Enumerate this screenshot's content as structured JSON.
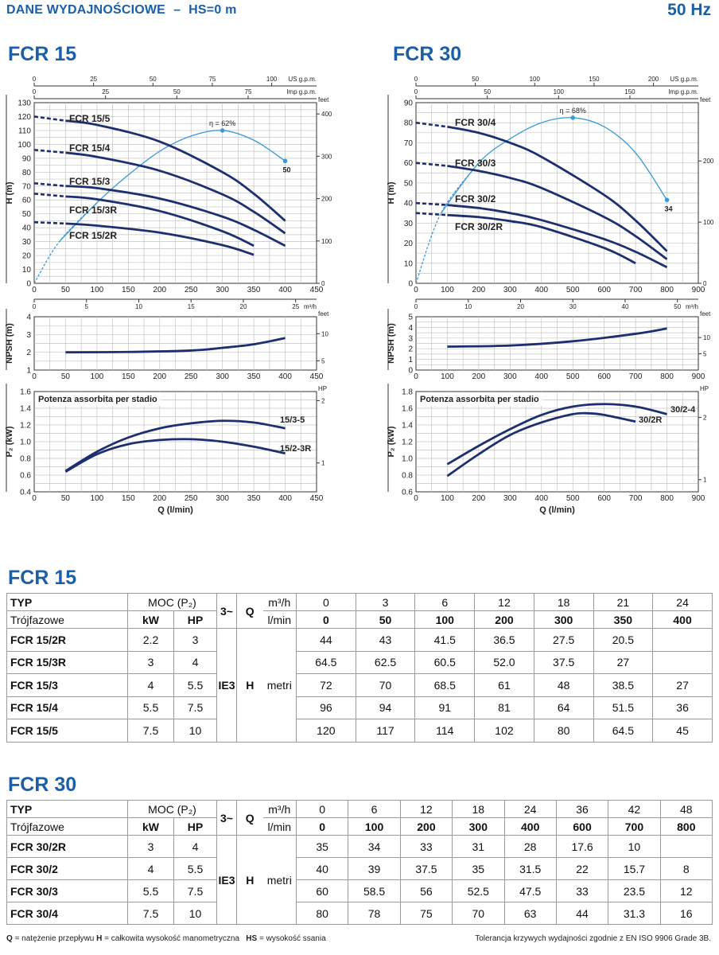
{
  "header": {
    "title": "DANE WYDAJNOŚCIOWE",
    "dash": "–",
    "hs": "HS=0 m",
    "freq": "50 Hz"
  },
  "sections": [
    {
      "title": "FCR 15"
    },
    {
      "title": "FCR 30"
    }
  ],
  "chart_data": [
    {
      "type": "line",
      "id": "h-fcr15",
      "ylabel": "H (m)",
      "xlim": [
        0,
        450
      ],
      "xticks": [
        0,
        50,
        100,
        150,
        200,
        250,
        300,
        350,
        400,
        450
      ],
      "ylim": [
        0,
        130
      ],
      "yticks": [
        0,
        10,
        20,
        30,
        40,
        50,
        60,
        70,
        80,
        90,
        100,
        110,
        120,
        130
      ],
      "decimals": 0,
      "aux": {
        "us": {
          "label": "US g.p.m.",
          "ticks": [
            0,
            25,
            50,
            75,
            100
          ]
        },
        "imp": {
          "label": "Imp g.p.m.",
          "ticks": [
            0,
            25,
            50,
            75
          ]
        },
        "m3h": {
          "label": "m³/h",
          "ticks": [
            0,
            5,
            10,
            15,
            20,
            25
          ]
        },
        "right": {
          "label": "feet",
          "unit": "feet",
          "ticks": [
            0,
            100,
            200,
            300,
            400
          ]
        }
      },
      "series": [
        {
          "name": "FCR 15/5",
          "x": [
            0,
            50,
            100,
            200,
            300,
            350,
            400
          ],
          "y": [
            120,
            117,
            114,
            102,
            80,
            64.5,
            45
          ]
        },
        {
          "name": "FCR 15/4",
          "x": [
            0,
            50,
            100,
            200,
            300,
            350,
            400
          ],
          "y": [
            96,
            94,
            91,
            81,
            64,
            51.5,
            36
          ]
        },
        {
          "name": "FCR 15/3",
          "x": [
            0,
            50,
            100,
            200,
            300,
            350,
            400
          ],
          "y": [
            72,
            70,
            68.5,
            61,
            48,
            38.5,
            27
          ]
        },
        {
          "name": "FCR 15/3R",
          "x": [
            0,
            50,
            100,
            200,
            300,
            350
          ],
          "y": [
            64.5,
            62.5,
            60.5,
            52,
            37.5,
            27
          ]
        },
        {
          "name": "FCR 15/2R",
          "x": [
            0,
            50,
            100,
            200,
            300,
            350
          ],
          "y": [
            44,
            43,
            41.5,
            36.5,
            27.5,
            20.5
          ]
        }
      ],
      "efficiency": {
        "label": "η = 62%",
        "end_label": "50",
        "x": [
          0,
          40,
          100,
          150,
          200,
          250,
          300,
          350,
          400
        ],
        "y": [
          0,
          30,
          58,
          78,
          95,
          106,
          110,
          103,
          88
        ]
      }
    },
    {
      "type": "line",
      "id": "h-fcr30",
      "ylabel": "H (m)",
      "xlim": [
        0,
        900
      ],
      "xticks": [
        0,
        100,
        200,
        300,
        400,
        500,
        600,
        700,
        800,
        900
      ],
      "ylim": [
        0,
        90
      ],
      "yticks": [
        0,
        10,
        20,
        30,
        40,
        50,
        60,
        70,
        80,
        90
      ],
      "decimals": 0,
      "aux": {
        "us": {
          "label": "US g.p.m.",
          "ticks": [
            0,
            50,
            100,
            150,
            200
          ]
        },
        "imp": {
          "label": "Imp g.p.m.",
          "ticks": [
            0,
            50,
            100,
            150
          ]
        },
        "m3h": {
          "label": "m³/h",
          "ticks": [
            0,
            10,
            20,
            30,
            40,
            50
          ]
        },
        "right": {
          "label": "feet",
          "unit": "feet",
          "ticks": [
            0,
            100,
            200
          ]
        }
      },
      "series": [
        {
          "name": "FCR 30/4",
          "x": [
            0,
            100,
            200,
            300,
            400,
            600,
            700,
            800
          ],
          "y": [
            80,
            78,
            75,
            70,
            63,
            44,
            31.3,
            16
          ]
        },
        {
          "name": "FCR 30/3",
          "x": [
            0,
            100,
            200,
            300,
            400,
            600,
            700,
            800
          ],
          "y": [
            60,
            58.5,
            56,
            52.5,
            47.5,
            33,
            23.5,
            12
          ]
        },
        {
          "name": "FCR 30/2",
          "x": [
            0,
            100,
            200,
            300,
            400,
            600,
            700,
            800
          ],
          "y": [
            40,
            39,
            37.5,
            35,
            31.5,
            22,
            15.7,
            8
          ]
        },
        {
          "name": "FCR 30/2R",
          "x": [
            0,
            100,
            200,
            300,
            400,
            600,
            700
          ],
          "y": [
            35,
            34,
            33,
            31,
            28,
            17.6,
            10
          ]
        }
      ],
      "efficiency": {
        "label": "η = 68%",
        "end_label": "34",
        "x": [
          0,
          80,
          200,
          300,
          400,
          500,
          600,
          700,
          800
        ],
        "y": [
          0,
          35,
          60,
          72,
          80,
          82.5,
          78,
          65,
          41.5
        ]
      }
    },
    {
      "type": "line",
      "id": "npsh-fcr15",
      "ylabel": "NPSH (m)",
      "xlim": [
        0,
        450
      ],
      "xticks": [
        0,
        50,
        100,
        150,
        200,
        250,
        300,
        350,
        400,
        450
      ],
      "ylim": [
        1,
        4
      ],
      "yticks": [
        1,
        2,
        3,
        4
      ],
      "decimals": 0,
      "aux": {
        "right": {
          "label": "feet",
          "unit": "feet",
          "ticks": [
            5,
            10
          ]
        }
      },
      "series": [
        {
          "name": "NPSH",
          "x": [
            50,
            150,
            250,
            300,
            350,
            400
          ],
          "y": [
            2,
            2.02,
            2.1,
            2.25,
            2.45,
            2.8
          ]
        }
      ]
    },
    {
      "type": "line",
      "id": "npsh-fcr30",
      "ylabel": "NPSH (m)",
      "xlim": [
        0,
        900
      ],
      "xticks": [
        0,
        100,
        200,
        300,
        400,
        500,
        600,
        700,
        800,
        900
      ],
      "ylim": [
        0,
        5
      ],
      "yticks": [
        0,
        1,
        2,
        3,
        4,
        5
      ],
      "decimals": 0,
      "aux": {
        "right": {
          "label": "feet",
          "unit": "feet",
          "ticks": [
            5,
            10
          ]
        }
      },
      "series": [
        {
          "name": "NPSH",
          "x": [
            100,
            300,
            500,
            700,
            800
          ],
          "y": [
            2.2,
            2.3,
            2.7,
            3.4,
            3.9
          ]
        }
      ]
    },
    {
      "type": "line",
      "id": "p2-fcr15",
      "title": "Potenza assorbita per stadio",
      "ylabel": "P₂ (kW)",
      "xlabel": "Q (l/min)",
      "xlim": [
        0,
        450
      ],
      "xticks": [
        0,
        50,
        100,
        150,
        200,
        250,
        300,
        350,
        400,
        450
      ],
      "ylim": [
        0.4,
        1.6
      ],
      "yticks": [
        0.4,
        0.6,
        0.8,
        1.0,
        1.2,
        1.4,
        1.6
      ],
      "decimals": 1,
      "aux": {
        "right": {
          "label": "HP",
          "unit": "hp",
          "ticks": [
            1,
            2
          ]
        }
      },
      "series": [
        {
          "name": "15/3-5",
          "x": [
            50,
            100,
            150,
            200,
            250,
            300,
            350,
            400
          ],
          "y": [
            0.65,
            0.88,
            1.05,
            1.16,
            1.22,
            1.25,
            1.23,
            1.16
          ]
        },
        {
          "name": "15/2-3R",
          "x": [
            50,
            100,
            150,
            200,
            250,
            300,
            350,
            400
          ],
          "y": [
            0.64,
            0.85,
            0.97,
            1.02,
            1.03,
            1.0,
            0.94,
            0.86
          ]
        }
      ]
    },
    {
      "type": "line",
      "id": "p2-fcr30",
      "title": "Potenza assorbita per stadio",
      "ylabel": "P₂ (kW)",
      "xlabel": "Q (l/min)",
      "xlim": [
        0,
        900
      ],
      "xticks": [
        0,
        100,
        200,
        300,
        400,
        500,
        600,
        700,
        800,
        900
      ],
      "ylim": [
        0.6,
        1.8
      ],
      "yticks": [
        0.6,
        0.8,
        1.0,
        1.2,
        1.4,
        1.6,
        1.8
      ],
      "decimals": 1,
      "aux": {
        "right": {
          "label": "HP",
          "unit": "hp",
          "ticks": [
            1,
            2
          ]
        }
      },
      "series": [
        {
          "name": "30/2-4",
          "x": [
            100,
            200,
            300,
            400,
            500,
            600,
            700,
            800
          ],
          "y": [
            0.93,
            1.15,
            1.35,
            1.52,
            1.62,
            1.65,
            1.62,
            1.53
          ]
        },
        {
          "name": "30/2R",
          "x": [
            100,
            200,
            300,
            400,
            500,
            550,
            600,
            700
          ],
          "y": [
            0.79,
            1.05,
            1.28,
            1.43,
            1.53,
            1.54,
            1.52,
            1.44
          ]
        }
      ]
    }
  ],
  "tables": [
    {
      "title": "FCR 15",
      "typ": "TYP",
      "moc": "MOC (P₂)",
      "phase": "3~",
      "q": "Q",
      "m3h": "m³/h",
      "trojfazowe": "Trójfazowe",
      "kw": "kW",
      "hp": "HP",
      "lmin": "l/min",
      "ie": "IE3",
      "h": "H",
      "metri": "metri",
      "q_m3h": [
        "0",
        "3",
        "6",
        "12",
        "18",
        "21",
        "24"
      ],
      "q_lmin": [
        "0",
        "50",
        "100",
        "200",
        "300",
        "350",
        "400"
      ],
      "rows": [
        {
          "name": "FCR 15/2R",
          "kw": "2.2",
          "hp": "3",
          "values": [
            "44",
            "43",
            "41.5",
            "36.5",
            "27.5",
            "20.5",
            ""
          ]
        },
        {
          "name": "FCR 15/3R",
          "kw": "3",
          "hp": "4",
          "values": [
            "64.5",
            "62.5",
            "60.5",
            "52.0",
            "37.5",
            "27",
            ""
          ]
        },
        {
          "name": "FCR 15/3",
          "kw": "4",
          "hp": "5.5",
          "values": [
            "72",
            "70",
            "68.5",
            "61",
            "48",
            "38.5",
            "27"
          ]
        },
        {
          "name": "FCR 15/4",
          "kw": "5.5",
          "hp": "7.5",
          "values": [
            "96",
            "94",
            "91",
            "81",
            "64",
            "51.5",
            "36"
          ]
        },
        {
          "name": "FCR 15/5",
          "kw": "7.5",
          "hp": "10",
          "values": [
            "120",
            "117",
            "114",
            "102",
            "80",
            "64.5",
            "45"
          ]
        }
      ]
    },
    {
      "title": "FCR 30",
      "typ": "TYP",
      "moc": "MOC (P₂)",
      "phase": "3~",
      "q": "Q",
      "m3h": "m³/h",
      "trojfazowe": "Trójfazowe",
      "kw": "kW",
      "hp": "HP",
      "lmin": "l/min",
      "ie": "IE3",
      "h": "H",
      "metri": "metri",
      "q_m3h": [
        "0",
        "6",
        "12",
        "18",
        "24",
        "36",
        "42",
        "48"
      ],
      "q_lmin": [
        "0",
        "100",
        "200",
        "300",
        "400",
        "600",
        "700",
        "800"
      ],
      "rows": [
        {
          "name": "FCR 30/2R",
          "kw": "3",
          "hp": "4",
          "values": [
            "35",
            "34",
            "33",
            "31",
            "28",
            "17.6",
            "10",
            ""
          ]
        },
        {
          "name": "FCR 30/2",
          "kw": "4",
          "hp": "5.5",
          "values": [
            "40",
            "39",
            "37.5",
            "35",
            "31.5",
            "22",
            "15.7",
            "8"
          ]
        },
        {
          "name": "FCR 30/3",
          "kw": "5.5",
          "hp": "7.5",
          "values": [
            "60",
            "58.5",
            "56",
            "52.5",
            "47.5",
            "33",
            "23.5",
            "12"
          ]
        },
        {
          "name": "FCR 30/4",
          "kw": "7.5",
          "hp": "10",
          "values": [
            "80",
            "78",
            "75",
            "70",
            "63",
            "44",
            "31.3",
            "16"
          ]
        }
      ]
    }
  ],
  "footer": {
    "q": "Q",
    "q_text": "= natężenie przepływu",
    "h": "H",
    "h_text": "= całkowita wysokość manometryczna",
    "hs": "HS",
    "hs_text": "= wysokość ssania",
    "tolerance": "Tolerancja krzywych wydajności zgodnie z EN ISO 9906 Grade 3B."
  },
  "colors": {
    "brand": "#1b5fa8",
    "curve": "#1d2f6f",
    "efficiency": "#3a9ad6",
    "grid": "#c4c4c4"
  }
}
